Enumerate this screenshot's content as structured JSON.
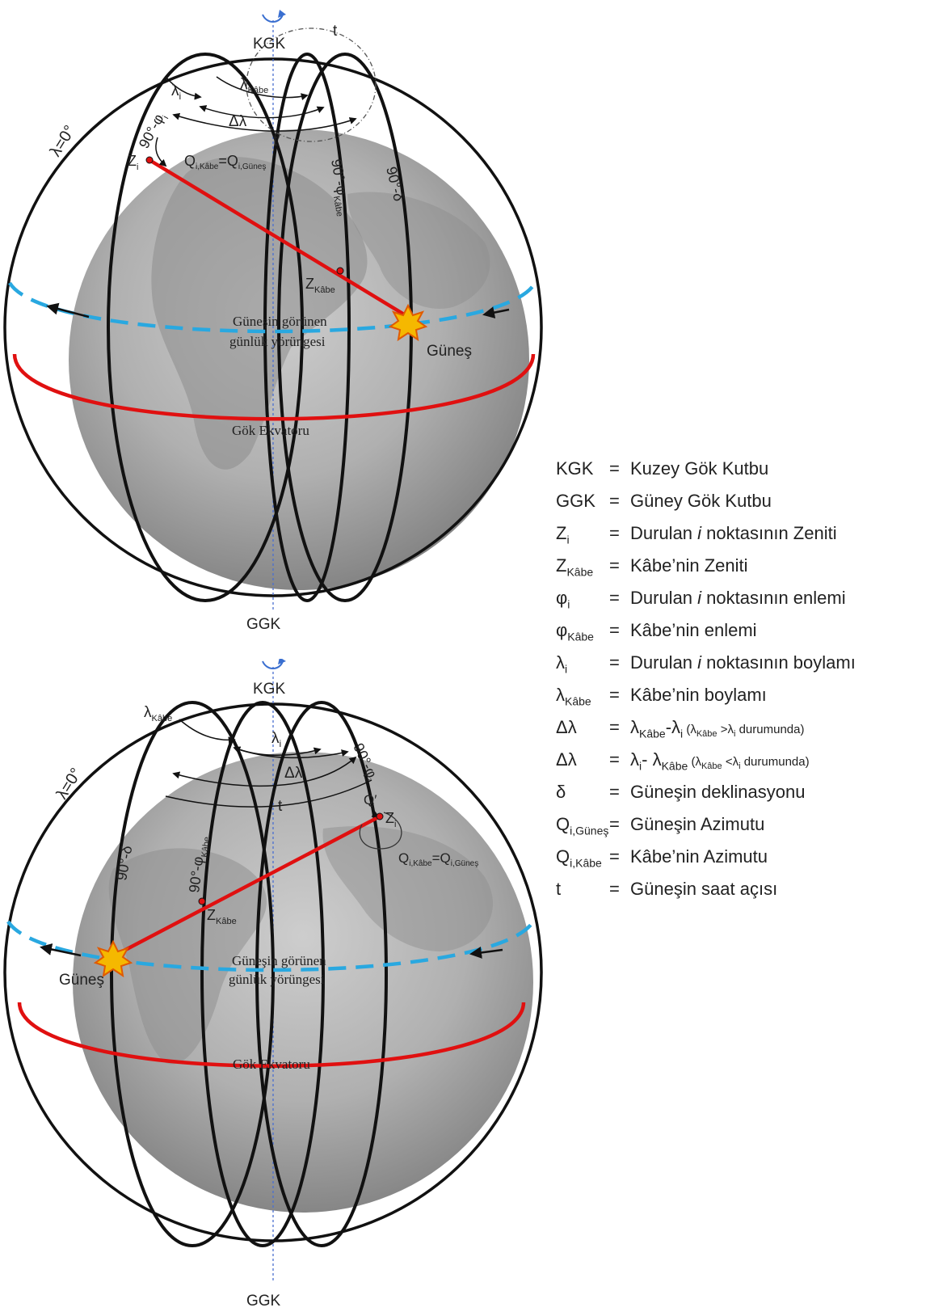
{
  "figure_top": {
    "pole_north": "KGK",
    "pole_south": "GGK",
    "t_label": "t",
    "t_prime_label": "t′",
    "lambda_zero": "λ=0°",
    "lambda_i": {
      "base": "λ",
      "sub": "i"
    },
    "lambda_kabe": {
      "base": "λ",
      "sub": "Kâbe"
    },
    "delta_lambda": "Δλ",
    "colat_i": {
      "base": "90°-φ",
      "sub": "i"
    },
    "colat_kabe": {
      "base": "90°-φ",
      "sub": "Kâbe"
    },
    "colat_sun": "90°-δ",
    "zenith_i": {
      "base": "Z",
      "sub": "i"
    },
    "zenith_kabe": {
      "base": "Z",
      "sub": "Kâbe"
    },
    "azimuth_eq": {
      "q1": "Q",
      "q1_sub": "i,Kâbe",
      "eq": "=",
      "q2": "Q",
      "q2_sub": "i,Güneş"
    },
    "orbit_line1": "Güneşin görünen",
    "orbit_line2": "günlük yörüngesi",
    "sun_label": "Güneş",
    "equator_label": "Gök Ekvatoru"
  },
  "figure_bottom": {
    "pole_north": "KGK",
    "pole_south": "GGK",
    "t_label": "t",
    "q_prime": "Q′",
    "lambda_zero": "λ=0°",
    "lambda_i": {
      "base": "λ",
      "sub": "i"
    },
    "lambda_kabe": {
      "base": "λ",
      "sub": "Kâbe"
    },
    "delta_lambda": "Δλ",
    "colat_i": {
      "base": "90°-φ",
      "sub": "i"
    },
    "colat_kabe": {
      "base": "90°-φ",
      "sub": "Kâbe"
    },
    "colat_sun": "90°-δ",
    "zenith_i": {
      "base": "Z",
      "sub": "i"
    },
    "zenith_kabe": {
      "base": "Z",
      "sub": "Kâbe"
    },
    "azimuth_eq": {
      "q1": "Q",
      "q1_sub": "i,Kâbe",
      "eq": "=",
      "q2": "Q",
      "q2_sub": "i,Güneş"
    },
    "orbit_line1": "Güneşin görünen",
    "orbit_line2": "günlük yörüngesi",
    "sun_label": "Güneş",
    "equator_label": "Gök Ekvatoru"
  },
  "legend": {
    "equals": "=",
    "rows": [
      {
        "sym": "KGK",
        "sym_sub": "",
        "def": "Kuzey Gök Kutbu"
      },
      {
        "sym": "GGK",
        "sym_sub": "",
        "def": "Güney Gök Kutbu"
      },
      {
        "sym": "Z",
        "sym_sub": "i",
        "def_pre": "Durulan ",
        "def_em": "i",
        "def_post": " noktasının Zeniti"
      },
      {
        "sym": "Z",
        "sym_sub": "Kâbe",
        "def": "Kâbe’nin Zeniti"
      },
      {
        "sym": "φ",
        "sym_sub": "i",
        "def_pre": "Durulan ",
        "def_em": "i",
        "def_post": " noktasının enlemi"
      },
      {
        "sym": "φ",
        "sym_sub": "Kâbe",
        "def": "Kâbe’nin enlemi"
      },
      {
        "sym": "λ",
        "sym_sub": "i",
        "def_pre": "Durulan ",
        "def_em": "i",
        "def_post": " noktasının boylamı"
      },
      {
        "sym": "λ",
        "sym_sub": "Kâbe",
        "def": "Kâbe’nin boylamı"
      },
      {
        "sym": "Δλ",
        "sym_sub": "",
        "f_a": "λ",
        "f_a_sub": "Kâbe",
        "f_op": "-λ",
        "f_b_sub": "i",
        "f_cond": " (λ",
        "f_cond_sub1": "Kâbe",
        "f_cond_op": " >λ",
        "f_cond_sub2": "i",
        "f_cond_end": " durumunda)"
      },
      {
        "sym": "Δλ",
        "sym_sub": "",
        "f_a": "λ",
        "f_a_sub": "i",
        "f_op": "- λ",
        "f_b_sub": "Kâbe",
        "f_cond": " (λ",
        "f_cond_sub1": "Kâbe",
        "f_cond_op": " <λ",
        "f_cond_sub2": "i",
        "f_cond_end": " durumunda)"
      },
      {
        "sym": "δ",
        "sym_sub": "",
        "def": "Güneşin deklinasyonu"
      },
      {
        "sym": "Q",
        "sym_sub": "i,Güneş",
        "def": "Güneşin Azimutu"
      },
      {
        "sym": "Q",
        "sym_sub": "i,Kâbe",
        "def": "Kâbe’nin Azimutu"
      },
      {
        "sym": "t",
        "sym_sub": "",
        "def": "Güneşin saat açısı"
      }
    ]
  },
  "colors": {
    "meridian": "#111111",
    "great_circle_red": "#e01010",
    "orbit_dashed": "#29a8e0",
    "sun": "#f5b800",
    "sun_outline": "#e05a00",
    "axis": "#4a6fd0",
    "earth": "#a9a9a9"
  },
  "icons": [
    "rotation-arrow-icon",
    "sun-icon",
    "point-marker-icon"
  ]
}
